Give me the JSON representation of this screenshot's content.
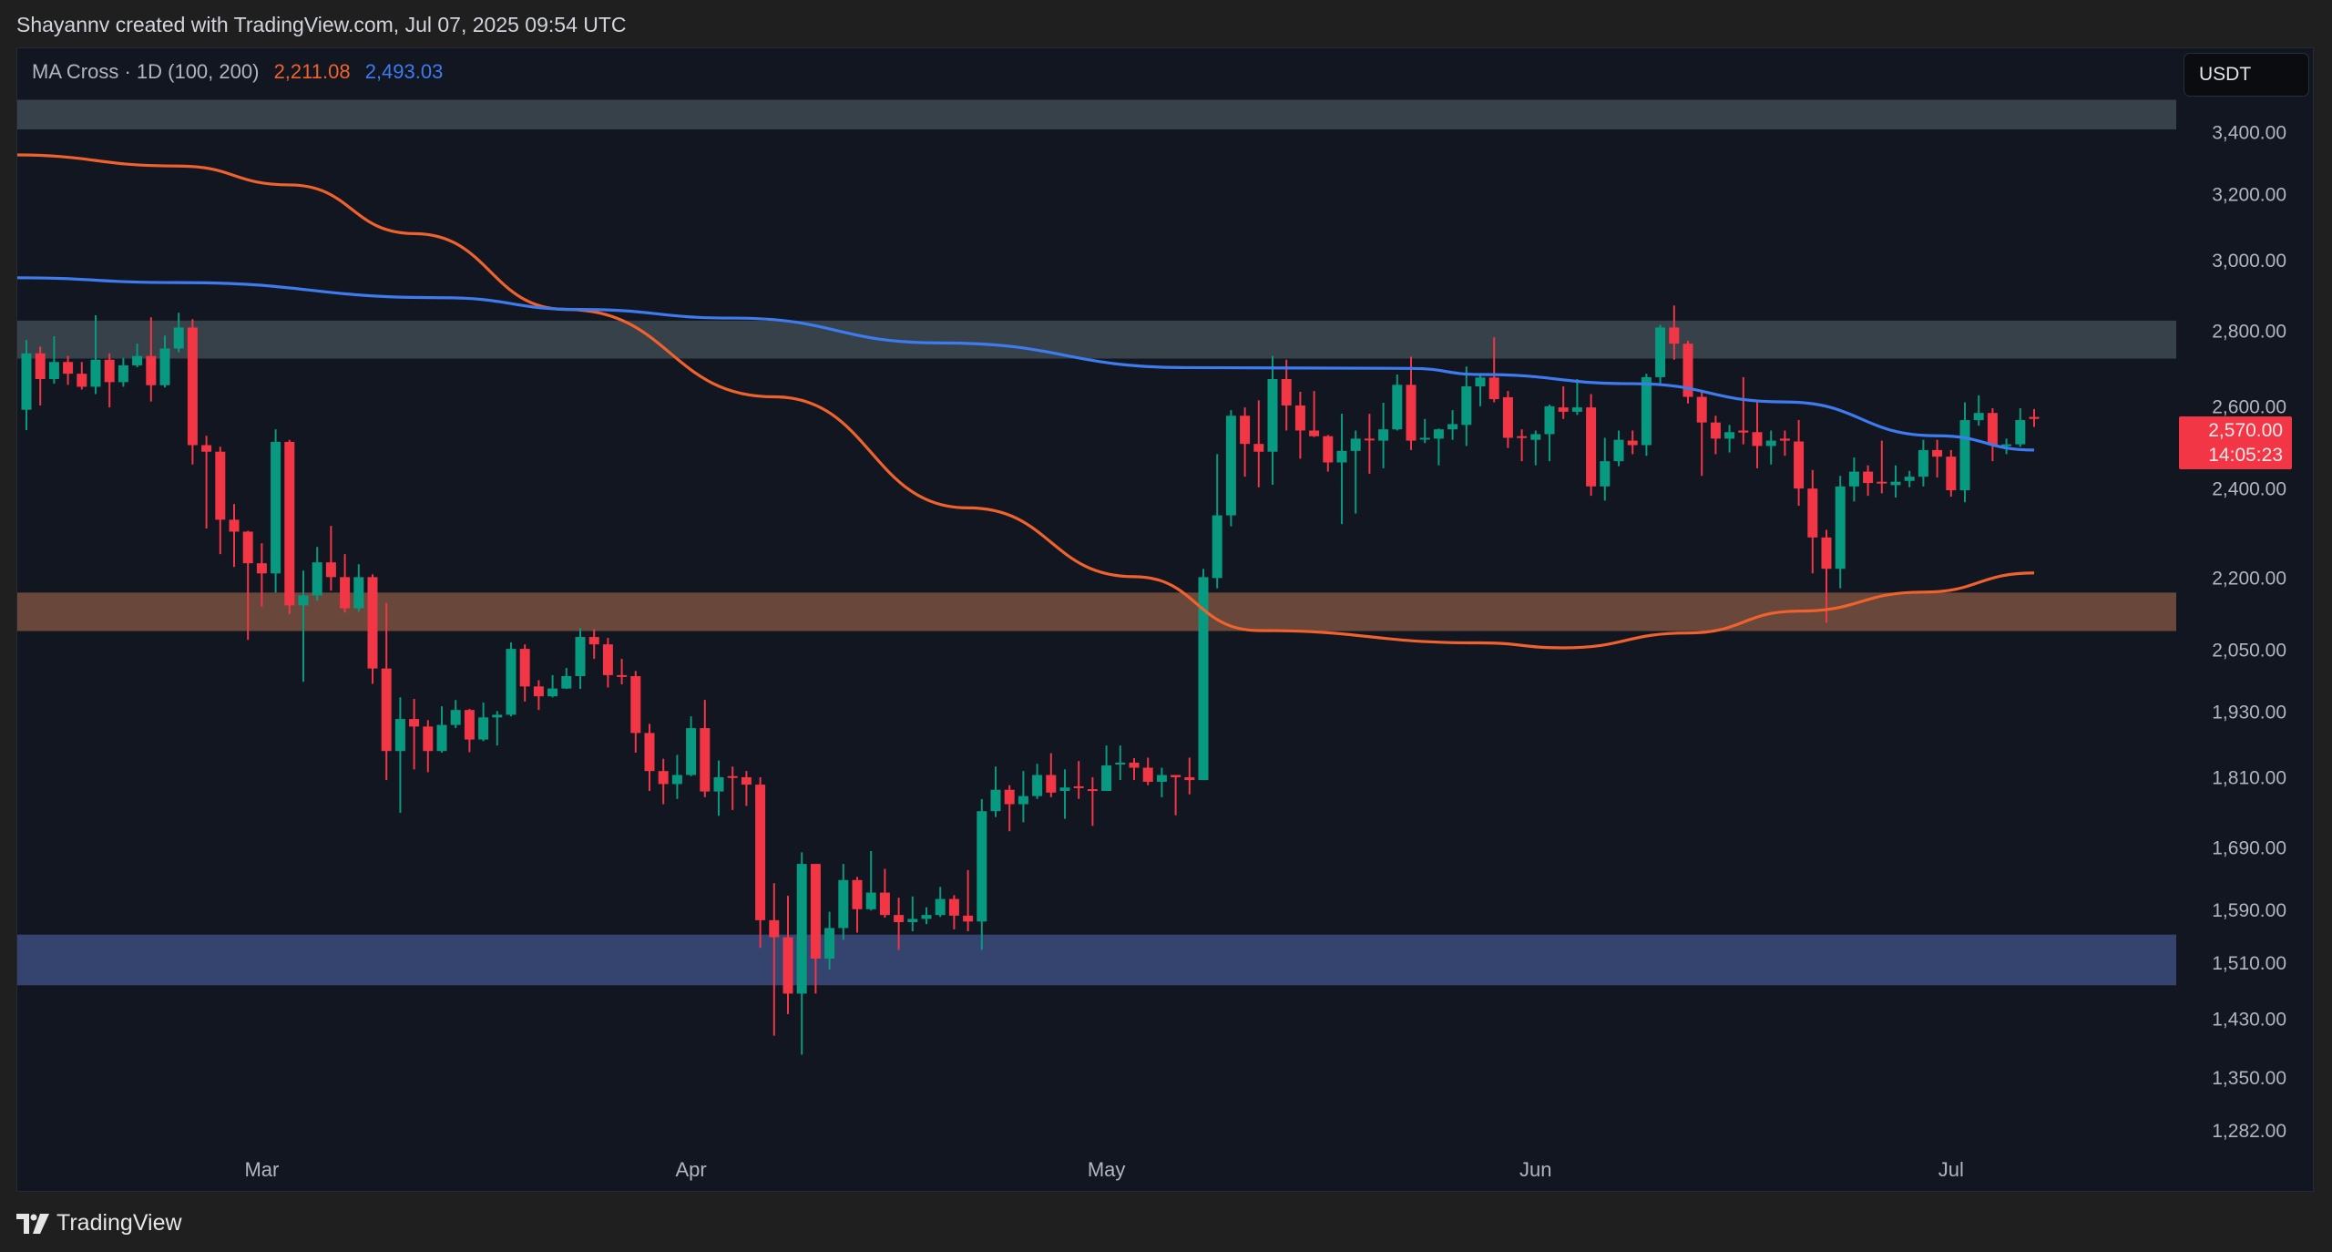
{
  "header": {
    "attribution": "Shayannv created with TradingView.com, Jul 07, 2025 09:54 UTC"
  },
  "legend": {
    "indicator": "MA Cross · 1D (100, 200)",
    "ma200_value": "2,211.08",
    "ma100_value": "2,493.03"
  },
  "currency_button": "USDT",
  "price_tag": {
    "price": "2,570.00",
    "countdown": "14:05:23"
  },
  "footer": {
    "brand": "TradingView",
    "logo_icon": "tradingview-logo-icon"
  },
  "colors": {
    "up": "#089981",
    "down": "#f23645",
    "ma200": "#f0622d",
    "ma100": "#3d7bef",
    "zone_grey": "#36414a",
    "zone_brown": "#6a473b",
    "zone_blue": "#35436f"
  },
  "chart_data": {
    "type": "candlestick",
    "scale": "log",
    "timeframe": "1D",
    "y_ticks": [
      {
        "value": 3400,
        "label": "3,400.00"
      },
      {
        "value": 3200,
        "label": "3,200.00"
      },
      {
        "value": 3000,
        "label": "3,000.00"
      },
      {
        "value": 2800,
        "label": "2,800.00"
      },
      {
        "value": 2600,
        "label": "2,600.00"
      },
      {
        "value": 2400,
        "label": "2,400.00"
      },
      {
        "value": 2200,
        "label": "2,200.00"
      },
      {
        "value": 2050,
        "label": "2,050.00"
      },
      {
        "value": 1930,
        "label": "1,930.00"
      },
      {
        "value": 1810,
        "label": "1,810.00"
      },
      {
        "value": 1690,
        "label": "1,690.00"
      },
      {
        "value": 1590,
        "label": "1,590.00"
      },
      {
        "value": 1510,
        "label": "1,510.00"
      },
      {
        "value": 1430,
        "label": "1,430.00"
      },
      {
        "value": 1350,
        "label": "1,350.00"
      },
      {
        "value": 1282,
        "label": "1,282.00"
      }
    ],
    "x_ticks": [
      {
        "date": "2025-03-01",
        "label": "Mar"
      },
      {
        "date": "2025-04-01",
        "label": "Apr"
      },
      {
        "date": "2025-05-01",
        "label": "May"
      },
      {
        "date": "2025-06-01",
        "label": "Jun"
      },
      {
        "date": "2025-07-01",
        "label": "Jul"
      }
    ],
    "zones": [
      {
        "color": "zone_grey",
        "low": 3410,
        "high": 3510
      },
      {
        "color": "zone_grey",
        "low": 2726,
        "high": 2829
      },
      {
        "color": "zone_brown",
        "low": 2089,
        "high": 2169
      },
      {
        "color": "zone_blue",
        "low": 1478,
        "high": 1553
      }
    ],
    "ma200": [
      [
        "2025-02-11",
        3326
      ],
      [
        "2025-02-23",
        3290
      ],
      [
        "2025-03-03",
        3230
      ],
      [
        "2025-03-12",
        3080
      ],
      [
        "2025-03-23",
        2860
      ],
      [
        "2025-04-07",
        2626
      ],
      [
        "2025-04-21",
        2356
      ],
      [
        "2025-05-03",
        2203
      ],
      [
        "2025-05-12",
        2090
      ],
      [
        "2025-05-28",
        2065
      ],
      [
        "2025-06-03",
        2055
      ],
      [
        "2025-06-12",
        2085
      ],
      [
        "2025-06-20",
        2130
      ],
      [
        "2025-06-29",
        2170
      ],
      [
        "2025-07-07",
        2211
      ]
    ],
    "ma100": [
      [
        "2025-02-11",
        2950
      ],
      [
        "2025-02-23",
        2936
      ],
      [
        "2025-03-14",
        2893
      ],
      [
        "2025-03-24",
        2860
      ],
      [
        "2025-04-04",
        2836
      ],
      [
        "2025-04-19",
        2768
      ],
      [
        "2025-05-07",
        2702
      ],
      [
        "2025-05-23",
        2700
      ],
      [
        "2025-05-28",
        2684
      ],
      [
        "2025-06-08",
        2660
      ],
      [
        "2025-06-19",
        2613
      ],
      [
        "2025-06-30",
        2528
      ],
      [
        "2025-07-07",
        2493
      ]
    ],
    "candle_fields": [
      "date",
      "open",
      "high",
      "low",
      "close"
    ],
    "candles": [
      [
        "2025-02-12",
        2593,
        2776,
        2542,
        2740
      ],
      [
        "2025-02-13",
        2740,
        2758,
        2604,
        2672
      ],
      [
        "2025-02-14",
        2672,
        2786,
        2660,
        2717
      ],
      [
        "2025-02-15",
        2717,
        2733,
        2657,
        2686
      ],
      [
        "2025-02-16",
        2686,
        2717,
        2645,
        2652
      ],
      [
        "2025-02-17",
        2652,
        2844,
        2633,
        2723
      ],
      [
        "2025-02-18",
        2723,
        2740,
        2599,
        2664
      ],
      [
        "2025-02-19",
        2664,
        2728,
        2652,
        2708
      ],
      [
        "2025-02-20",
        2708,
        2766,
        2703,
        2733
      ],
      [
        "2025-02-21",
        2733,
        2838,
        2614,
        2656
      ],
      [
        "2025-02-22",
        2656,
        2788,
        2650,
        2753
      ],
      [
        "2025-02-23",
        2753,
        2851,
        2743,
        2810
      ],
      [
        "2025-02-24",
        2810,
        2833,
        2458,
        2505
      ],
      [
        "2025-02-25",
        2505,
        2528,
        2309,
        2489
      ],
      [
        "2025-02-26",
        2489,
        2501,
        2252,
        2329
      ],
      [
        "2025-02-27",
        2329,
        2365,
        2224,
        2302
      ],
      [
        "2025-02-28",
        2302,
        2304,
        2071,
        2232
      ],
      [
        "2025-03-01",
        2232,
        2276,
        2140,
        2210
      ],
      [
        "2025-03-02",
        2210,
        2544,
        2169,
        2513
      ],
      [
        "2025-03-03",
        2513,
        2518,
        2124,
        2142
      ],
      [
        "2025-03-04",
        2142,
        2216,
        1988,
        2163
      ],
      [
        "2025-03-05",
        2163,
        2268,
        2152,
        2234
      ],
      [
        "2025-03-06",
        2234,
        2315,
        2173,
        2202
      ],
      [
        "2025-03-07",
        2202,
        2252,
        2127,
        2136
      ],
      [
        "2025-03-08",
        2136,
        2230,
        2129,
        2202
      ],
      [
        "2025-03-09",
        2202,
        2208,
        1984,
        2014
      ],
      [
        "2025-03-10",
        2014,
        2147,
        1806,
        1858
      ],
      [
        "2025-03-11",
        1858,
        1958,
        1749,
        1917
      ],
      [
        "2025-03-12",
        1917,
        1955,
        1825,
        1903
      ],
      [
        "2025-03-13",
        1903,
        1915,
        1820,
        1858
      ],
      [
        "2025-03-14",
        1858,
        1941,
        1855,
        1906
      ],
      [
        "2025-03-15",
        1906,
        1953,
        1900,
        1934
      ],
      [
        "2025-03-16",
        1934,
        1936,
        1856,
        1879
      ],
      [
        "2025-03-17",
        1879,
        1948,
        1876,
        1920
      ],
      [
        "2025-03-18",
        1920,
        1932,
        1868,
        1925
      ],
      [
        "2025-03-19",
        1925,
        2066,
        1922,
        2053
      ],
      [
        "2025-03-20",
        2053,
        2062,
        1950,
        1979
      ],
      [
        "2025-03-21",
        1979,
        1991,
        1934,
        1960
      ],
      [
        "2025-03-22",
        1960,
        2001,
        1958,
        1975
      ],
      [
        "2025-03-23",
        1975,
        2015,
        1974,
        1999
      ],
      [
        "2025-03-24",
        1999,
        2095,
        1974,
        2077
      ],
      [
        "2025-03-25",
        2077,
        2093,
        2033,
        2062
      ],
      [
        "2025-03-26",
        2062,
        2075,
        1977,
        2001
      ],
      [
        "2025-03-27",
        2001,
        2033,
        1983,
        1999
      ],
      [
        "2025-03-28",
        1999,
        2009,
        1855,
        1891
      ],
      [
        "2025-03-29",
        1891,
        1908,
        1787,
        1822
      ],
      [
        "2025-03-30",
        1822,
        1844,
        1764,
        1799
      ],
      [
        "2025-03-31",
        1799,
        1851,
        1773,
        1815
      ],
      [
        "2025-04-01",
        1815,
        1922,
        1813,
        1900
      ],
      [
        "2025-04-02",
        1900,
        1953,
        1776,
        1786
      ],
      [
        "2025-04-03",
        1786,
        1841,
        1744,
        1811
      ],
      [
        "2025-04-04",
        1813,
        1830,
        1754,
        1811
      ],
      [
        "2025-04-05",
        1811,
        1822,
        1761,
        1798
      ],
      [
        "2025-04-06",
        1798,
        1811,
        1533,
        1575
      ],
      [
        "2025-04-07",
        1575,
        1633,
        1407,
        1549
      ],
      [
        "2025-04-08",
        1549,
        1613,
        1437,
        1466
      ],
      [
        "2025-04-09",
        1466,
        1683,
        1381,
        1664
      ],
      [
        "2025-04-10",
        1664,
        1664,
        1466,
        1517
      ],
      [
        "2025-04-11",
        1517,
        1588,
        1501,
        1563
      ],
      [
        "2025-04-12",
        1563,
        1664,
        1545,
        1638
      ],
      [
        "2025-04-13",
        1638,
        1643,
        1556,
        1592
      ],
      [
        "2025-04-14",
        1592,
        1685,
        1590,
        1618
      ],
      [
        "2025-04-15",
        1618,
        1656,
        1579,
        1583
      ],
      [
        "2025-04-16",
        1583,
        1610,
        1530,
        1572
      ],
      [
        "2025-04-17",
        1572,
        1612,
        1558,
        1577
      ],
      [
        "2025-04-18",
        1577,
        1595,
        1569,
        1583
      ],
      [
        "2025-04-19",
        1583,
        1627,
        1580,
        1608
      ],
      [
        "2025-04-20",
        1608,
        1614,
        1561,
        1582
      ],
      [
        "2025-04-21",
        1582,
        1654,
        1558,
        1573
      ],
      [
        "2025-04-22",
        1573,
        1773,
        1530,
        1752
      ],
      [
        "2025-04-23",
        1752,
        1830,
        1742,
        1789
      ],
      [
        "2025-04-24",
        1789,
        1797,
        1718,
        1764
      ],
      [
        "2025-04-25",
        1764,
        1822,
        1733,
        1778
      ],
      [
        "2025-04-26",
        1778,
        1835,
        1773,
        1815
      ],
      [
        "2025-04-27",
        1815,
        1854,
        1776,
        1784
      ],
      [
        "2025-04-28",
        1787,
        1825,
        1739,
        1793
      ],
      [
        "2025-04-29",
        1795,
        1840,
        1773,
        1793
      ],
      [
        "2025-04-30",
        1790,
        1811,
        1727,
        1789
      ],
      [
        "2025-05-01",
        1787,
        1868,
        1787,
        1832
      ],
      [
        "2025-05-02",
        1834,
        1868,
        1806,
        1837
      ],
      [
        "2025-05-03",
        1837,
        1845,
        1806,
        1828
      ],
      [
        "2025-05-04",
        1828,
        1846,
        1797,
        1803
      ],
      [
        "2025-05-05",
        1803,
        1828,
        1776,
        1815
      ],
      [
        "2025-05-06",
        1815,
        1815,
        1745,
        1811
      ],
      [
        "2025-05-07",
        1811,
        1846,
        1781,
        1806
      ],
      [
        "2025-05-08",
        1806,
        2220,
        1806,
        2202
      ],
      [
        "2025-05-09",
        2200,
        2483,
        2178,
        2339
      ],
      [
        "2025-05-10",
        2339,
        2592,
        2314,
        2578
      ],
      [
        "2025-05-11",
        2578,
        2599,
        2429,
        2508
      ],
      [
        "2025-05-12",
        2508,
        2617,
        2404,
        2489
      ],
      [
        "2025-05-13",
        2489,
        2733,
        2410,
        2672
      ],
      [
        "2025-05-14",
        2672,
        2723,
        2541,
        2604
      ],
      [
        "2025-05-15",
        2604,
        2639,
        2472,
        2541
      ],
      [
        "2025-05-16",
        2541,
        2641,
        2525,
        2527
      ],
      [
        "2025-05-17",
        2527,
        2530,
        2441,
        2463
      ],
      [
        "2025-05-18",
        2463,
        2583,
        2319,
        2491
      ],
      [
        "2025-05-19",
        2491,
        2541,
        2343,
        2521
      ],
      [
        "2025-05-20",
        2521,
        2583,
        2436,
        2518
      ],
      [
        "2025-05-21",
        2516,
        2611,
        2449,
        2544
      ],
      [
        "2025-05-22",
        2544,
        2684,
        2541,
        2657
      ],
      [
        "2025-05-23",
        2657,
        2731,
        2493,
        2516
      ],
      [
        "2025-05-24",
        2521,
        2570,
        2510,
        2523
      ],
      [
        "2025-05-25",
        2521,
        2546,
        2456,
        2544
      ],
      [
        "2025-05-26",
        2544,
        2592,
        2518,
        2557
      ],
      [
        "2025-05-27",
        2555,
        2705,
        2503,
        2653
      ],
      [
        "2025-05-28",
        2653,
        2681,
        2602,
        2676
      ],
      [
        "2025-05-29",
        2676,
        2783,
        2612,
        2620
      ],
      [
        "2025-05-30",
        2625,
        2641,
        2498,
        2523
      ],
      [
        "2025-05-31",
        2527,
        2544,
        2466,
        2525
      ],
      [
        "2025-06-01",
        2518,
        2541,
        2456,
        2532
      ],
      [
        "2025-06-02",
        2532,
        2606,
        2466,
        2602
      ],
      [
        "2025-06-03",
        2599,
        2653,
        2570,
        2588
      ],
      [
        "2025-06-04",
        2588,
        2672,
        2580,
        2599
      ],
      [
        "2025-06-05",
        2599,
        2633,
        2384,
        2406
      ],
      [
        "2025-06-06",
        2406,
        2523,
        2373,
        2466
      ],
      [
        "2025-06-07",
        2466,
        2541,
        2454,
        2518
      ],
      [
        "2025-06-08",
        2516,
        2541,
        2483,
        2505
      ],
      [
        "2025-06-09",
        2505,
        2686,
        2479,
        2677
      ],
      [
        "2025-06-10",
        2677,
        2817,
        2657,
        2810
      ],
      [
        "2025-06-11",
        2810,
        2871,
        2723,
        2766
      ],
      [
        "2025-06-12",
        2766,
        2774,
        2609,
        2626
      ],
      [
        "2025-06-13",
        2626,
        2640,
        2431,
        2561
      ],
      [
        "2025-06-14",
        2561,
        2578,
        2483,
        2521
      ],
      [
        "2025-06-15",
        2521,
        2555,
        2487,
        2537
      ],
      [
        "2025-06-16",
        2541,
        2677,
        2507,
        2536
      ],
      [
        "2025-06-17",
        2537,
        2612,
        2449,
        2503
      ],
      [
        "2025-06-18",
        2503,
        2541,
        2458,
        2516
      ],
      [
        "2025-06-19",
        2521,
        2541,
        2479,
        2516
      ],
      [
        "2025-06-20",
        2514,
        2567,
        2361,
        2401
      ],
      [
        "2025-06-21",
        2401,
        2445,
        2210,
        2289
      ],
      [
        "2025-06-22",
        2289,
        2306,
        2106,
        2220
      ],
      [
        "2025-06-23",
        2220,
        2431,
        2178,
        2406
      ],
      [
        "2025-06-24",
        2406,
        2475,
        2371,
        2441
      ],
      [
        "2025-06-25",
        2441,
        2456,
        2384,
        2414
      ],
      [
        "2025-06-26",
        2417,
        2516,
        2390,
        2414
      ],
      [
        "2025-06-27",
        2409,
        2456,
        2380,
        2417
      ],
      [
        "2025-06-28",
        2419,
        2443,
        2404,
        2429
      ],
      [
        "2025-06-29",
        2429,
        2518,
        2406,
        2493
      ],
      [
        "2025-06-30",
        2493,
        2518,
        2427,
        2477
      ],
      [
        "2025-07-01",
        2477,
        2493,
        2382,
        2397
      ],
      [
        "2025-07-02",
        2397,
        2612,
        2369,
        2567
      ],
      [
        "2025-07-03",
        2567,
        2630,
        2553,
        2585
      ],
      [
        "2025-07-04",
        2585,
        2597,
        2466,
        2505
      ],
      [
        "2025-07-05",
        2505,
        2521,
        2483,
        2507
      ],
      [
        "2025-07-06",
        2507,
        2597,
        2501,
        2567
      ],
      [
        "2025-07-07",
        2575,
        2595,
        2550,
        2570
      ]
    ]
  }
}
